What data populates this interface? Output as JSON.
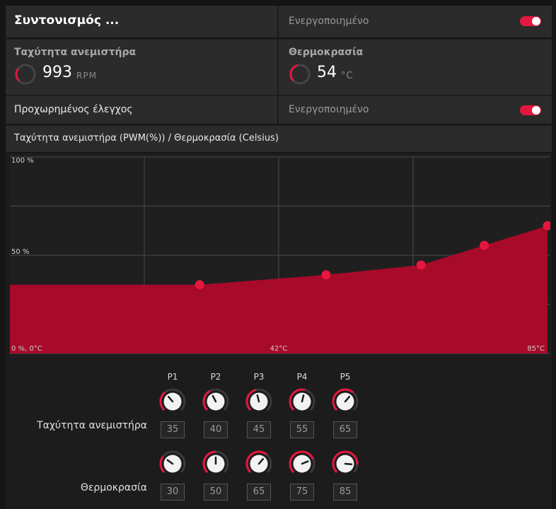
{
  "tuning": {
    "title": "Συντονισμός ...",
    "status": "Ενεργοποιημένο",
    "enabled": true
  },
  "fan_speed": {
    "label": "Ταχύτητα ανεμιστήρα",
    "value": "993",
    "unit": "RPM",
    "gauge_fraction": 0.3
  },
  "temperature": {
    "label": "Θερμοκρασία",
    "value": "54",
    "unit": "°C",
    "gauge_fraction": 0.45
  },
  "advanced": {
    "label": "Προχωρημένος έλεγχος",
    "status": "Ενεργοποιημένο",
    "enabled": true
  },
  "chart_header": "Ταχύτητα ανεμιστήρα (PWM(%)) / Θερμοκρασία (Celsius)",
  "colors": {
    "accent": "#e5173f",
    "fill": "#b00a2a",
    "grid": "#4a4a4a"
  },
  "chart_data": {
    "type": "area",
    "xlabel": "Θερμοκρασία (Celsius)",
    "ylabel": "Ταχύτητα ανεμιστήρα (PWM(%))",
    "xlim": [
      0,
      85
    ],
    "ylim": [
      0,
      100
    ],
    "y_tick_labels": [
      "100 %",
      "50 %",
      "0 %, 0°C"
    ],
    "x_tick_labels": [
      "42°C",
      "85°C"
    ],
    "points": [
      {
        "name": "P1",
        "x": 30,
        "y": 35
      },
      {
        "name": "P2",
        "x": 50,
        "y": 40
      },
      {
        "name": "P3",
        "x": 65,
        "y": 45
      },
      {
        "name": "P4",
        "x": 75,
        "y": 55
      },
      {
        "name": "P5",
        "x": 85,
        "y": 65
      }
    ],
    "grid": true
  },
  "point_labels": [
    "P1",
    "P2",
    "P3",
    "P4",
    "P5"
  ],
  "fan_row": {
    "label": "Ταχύτητα ανεμιστήρα",
    "values": [
      "35",
      "40",
      "45",
      "55",
      "65"
    ]
  },
  "temp_row": {
    "label": "Θερμοκρασία",
    "values": [
      "30",
      "50",
      "65",
      "75",
      "85"
    ]
  }
}
